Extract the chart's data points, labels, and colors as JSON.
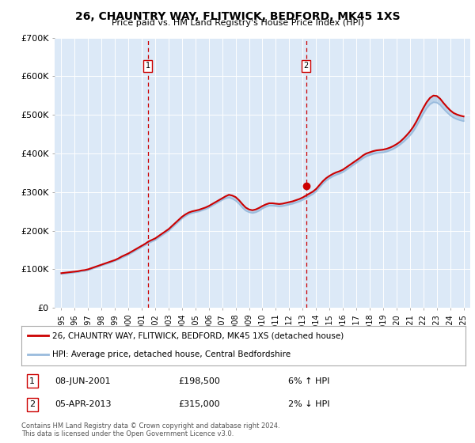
{
  "title": "26, CHAUNTRY WAY, FLITWICK, BEDFORD, MK45 1XS",
  "subtitle": "Price paid vs. HM Land Registry's House Price Index (HPI)",
  "legend_line1": "26, CHAUNTRY WAY, FLITWICK, BEDFORD, MK45 1XS (detached house)",
  "legend_line2": "HPI: Average price, detached house, Central Bedfordshire",
  "footnote": "Contains HM Land Registry data © Crown copyright and database right 2024.\nThis data is licensed under the Open Government Licence v3.0.",
  "transaction1_label": "1",
  "transaction1_date": "08-JUN-2001",
  "transaction1_price": "£198,500",
  "transaction1_hpi": "6% ↑ HPI",
  "transaction2_label": "2",
  "transaction2_date": "05-APR-2013",
  "transaction2_price": "£315,000",
  "transaction2_hpi": "2% ↓ HPI",
  "fig_bg_color": "#ffffff",
  "plot_bg_color": "#dce9f7",
  "red_color": "#cc0000",
  "blue_color": "#99bbdd",
  "grid_color": "#ffffff",
  "ylim": [
    0,
    700000
  ],
  "yticks": [
    0,
    100000,
    200000,
    300000,
    400000,
    500000,
    600000,
    700000
  ],
  "ytick_labels": [
    "£0",
    "£100K",
    "£200K",
    "£300K",
    "£400K",
    "£500K",
    "£600K",
    "£700K"
  ],
  "years": [
    1995.0,
    1995.25,
    1995.5,
    1995.75,
    1996.0,
    1996.25,
    1996.5,
    1996.75,
    1997.0,
    1997.25,
    1997.5,
    1997.75,
    1998.0,
    1998.25,
    1998.5,
    1998.75,
    1999.0,
    1999.25,
    1999.5,
    1999.75,
    2000.0,
    2000.25,
    2000.5,
    2000.75,
    2001.0,
    2001.25,
    2001.5,
    2001.75,
    2002.0,
    2002.25,
    2002.5,
    2002.75,
    2003.0,
    2003.25,
    2003.5,
    2003.75,
    2004.0,
    2004.25,
    2004.5,
    2004.75,
    2005.0,
    2005.25,
    2005.5,
    2005.75,
    2006.0,
    2006.25,
    2006.5,
    2006.75,
    2007.0,
    2007.25,
    2007.5,
    2007.75,
    2008.0,
    2008.25,
    2008.5,
    2008.75,
    2009.0,
    2009.25,
    2009.5,
    2009.75,
    2010.0,
    2010.25,
    2010.5,
    2010.75,
    2011.0,
    2011.25,
    2011.5,
    2011.75,
    2012.0,
    2012.25,
    2012.5,
    2012.75,
    2013.0,
    2013.25,
    2013.5,
    2013.75,
    2014.0,
    2014.25,
    2014.5,
    2014.75,
    2015.0,
    2015.25,
    2015.5,
    2015.75,
    2016.0,
    2016.25,
    2016.5,
    2016.75,
    2017.0,
    2017.25,
    2017.5,
    2017.75,
    2018.0,
    2018.25,
    2018.5,
    2018.75,
    2019.0,
    2019.25,
    2019.5,
    2019.75,
    2020.0,
    2020.25,
    2020.5,
    2020.75,
    2021.0,
    2021.25,
    2021.5,
    2021.75,
    2022.0,
    2022.25,
    2022.5,
    2022.75,
    2023.0,
    2023.25,
    2023.5,
    2023.75,
    2024.0,
    2024.25,
    2024.5,
    2024.75,
    2025.0
  ],
  "hpi_values": [
    88000,
    89000,
    90000,
    91000,
    92000,
    93000,
    95000,
    96000,
    98000,
    101000,
    104000,
    107000,
    110000,
    113000,
    116000,
    119000,
    122000,
    126000,
    130000,
    134000,
    138000,
    143000,
    148000,
    153000,
    158000,
    163000,
    168000,
    172000,
    176000,
    182000,
    188000,
    194000,
    200000,
    208000,
    216000,
    224000,
    232000,
    238000,
    243000,
    246000,
    248000,
    250000,
    253000,
    256000,
    260000,
    265000,
    270000,
    275000,
    280000,
    284000,
    286000,
    283000,
    278000,
    270000,
    260000,
    252000,
    248000,
    246000,
    248000,
    252000,
    258000,
    262000,
    265000,
    265000,
    264000,
    263000,
    264000,
    266000,
    268000,
    270000,
    273000,
    276000,
    280000,
    285000,
    290000,
    295000,
    302000,
    312000,
    322000,
    330000,
    336000,
    341000,
    345000,
    348000,
    352000,
    358000,
    364000,
    370000,
    376000,
    382000,
    388000,
    393000,
    396000,
    399000,
    401000,
    402000,
    403000,
    405000,
    408000,
    412000,
    417000,
    423000,
    430000,
    438000,
    447000,
    458000,
    472000,
    488000,
    504000,
    518000,
    528000,
    533000,
    532000,
    526000,
    516000,
    507000,
    499000,
    493000,
    489000,
    486000,
    484000
  ],
  "price_values": [
    90000,
    91000,
    92000,
    93000,
    94000,
    95000,
    97000,
    98000,
    100000,
    103000,
    106000,
    109000,
    112000,
    115000,
    118000,
    121000,
    124000,
    128000,
    133000,
    137000,
    141000,
    146000,
    151000,
    156000,
    161000,
    166000,
    172000,
    176000,
    180000,
    186000,
    192000,
    198000,
    204000,
    212000,
    220000,
    228000,
    236000,
    242000,
    247000,
    250000,
    252000,
    254000,
    257000,
    260000,
    264000,
    269000,
    274000,
    279000,
    284000,
    289000,
    293000,
    291000,
    287000,
    279000,
    269000,
    260000,
    255000,
    253000,
    255000,
    259000,
    264000,
    268000,
    271000,
    271000,
    270000,
    269000,
    270000,
    272000,
    274000,
    276000,
    279000,
    282000,
    286000,
    291000,
    296000,
    301000,
    308000,
    318000,
    328000,
    336000,
    342000,
    347000,
    351000,
    354000,
    358000,
    364000,
    370000,
    376000,
    382000,
    388000,
    395000,
    400000,
    403000,
    406000,
    408000,
    409000,
    410000,
    412000,
    415000,
    419000,
    424000,
    430000,
    438000,
    447000,
    457000,
    469000,
    484000,
    501000,
    518000,
    533000,
    544000,
    550000,
    549000,
    542000,
    531000,
    521000,
    512000,
    505000,
    501000,
    498000,
    496000
  ],
  "trans1_x": 2001.44,
  "trans1_y": 198500,
  "trans2_x": 2013.26,
  "trans2_y": 315000,
  "trans2_dot_y": 315000,
  "xlim_min": 1994.5,
  "xlim_max": 2025.5
}
